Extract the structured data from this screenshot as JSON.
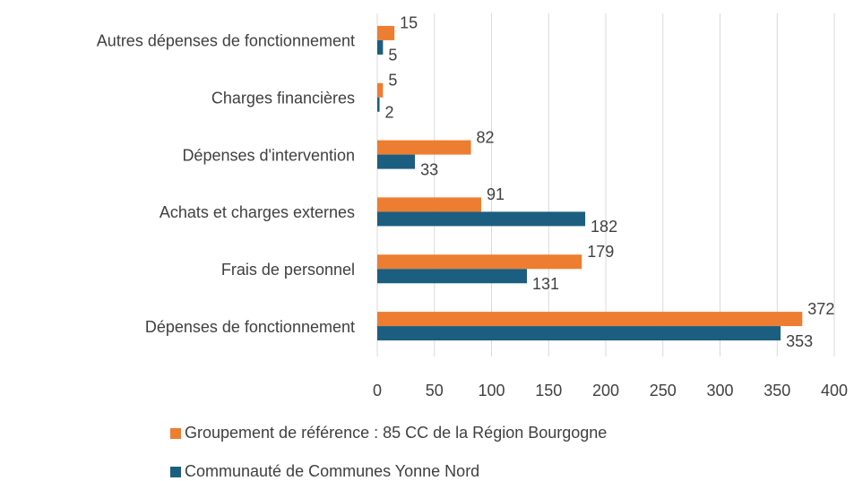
{
  "chart_data": {
    "type": "hbar",
    "categories": [
      "Autres dépenses de fonctionnement",
      "Charges financières",
      "Dépenses d'intervention",
      "Achats et charges externes",
      "Frais de personnel",
      "Dépenses de fonctionnement"
    ],
    "series": [
      {
        "name": "Groupement de référence : 85 CC de la Région Bourgogne",
        "color": "#ed7d31",
        "values": [
          15,
          5,
          82,
          91,
          179,
          372
        ]
      },
      {
        "name": "Communauté de Communes Yonne Nord",
        "color": "#1b5e80",
        "values": [
          5,
          2,
          33,
          182,
          131,
          353
        ]
      }
    ],
    "xlim": [
      0,
      400
    ],
    "xticks": [
      0,
      50,
      100,
      150,
      200,
      250,
      300,
      350,
      400
    ],
    "grid": true,
    "legend": "bottom"
  }
}
